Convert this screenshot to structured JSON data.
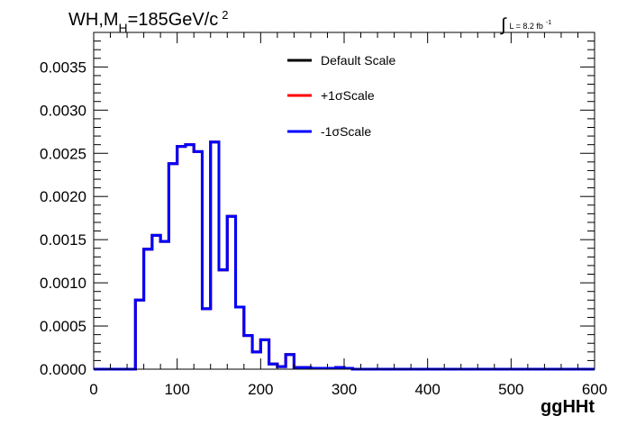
{
  "chart_data": {
    "type": "line",
    "title": {
      "main": "WH,M",
      "subscript": "H",
      "rest": "=185GeV/c",
      "superscript": "2"
    },
    "luminosity": {
      "integral_symbol": "∫",
      "text": "L = 8.2 fb",
      "superscript": "-1"
    },
    "xlabel": "ggHHt",
    "ylabel": "",
    "xlim": [
      0,
      600
    ],
    "ylim": [
      0,
      0.0039
    ],
    "x_ticks": [
      0,
      100,
      200,
      300,
      400,
      500,
      600
    ],
    "x_tick_labels": [
      "0",
      "100",
      "200",
      "300",
      "400",
      "500",
      "600"
    ],
    "y_ticks": [
      0,
      0.0005,
      0.001,
      0.0015,
      0.002,
      0.0025,
      0.003,
      0.0035
    ],
    "y_tick_labels": [
      "0.0000",
      "0.0005",
      "0.0010",
      "0.0015",
      "0.0020",
      "0.0025",
      "0.0030",
      "0.0035"
    ],
    "legend_placement": "top-center",
    "bin_edges": [
      0,
      10,
      20,
      30,
      40,
      50,
      60,
      70,
      80,
      90,
      100,
      110,
      120,
      130,
      140,
      150,
      160,
      170,
      180,
      190,
      200,
      210,
      220,
      230,
      240,
      250,
      260,
      270,
      280,
      290,
      300,
      310,
      320,
      330,
      340,
      350,
      360,
      370,
      380,
      390,
      400,
      410,
      420,
      430,
      440,
      450,
      460,
      470,
      480,
      490,
      500,
      510,
      520,
      530,
      540,
      550,
      560,
      570,
      580,
      590,
      600
    ],
    "series": [
      {
        "name": "Default Scale",
        "color": "#000000",
        "values": [
          0,
          0,
          0,
          0,
          0,
          0.0008,
          0.00139,
          0.00155,
          0.00148,
          0.00238,
          0.00258,
          0.0026,
          0.00252,
          0.0007,
          0.00263,
          0.00115,
          0.00177,
          0.00072,
          0.00039,
          0.0002,
          0.00034,
          6e-05,
          3e-05,
          0.00017,
          2e-05,
          2e-05,
          1e-05,
          1e-05,
          1e-05,
          2e-05,
          1e-05,
          0,
          0,
          0,
          0,
          0,
          0,
          0,
          0,
          0,
          0,
          0,
          0,
          0,
          0,
          0,
          0,
          0,
          0,
          0,
          0,
          0,
          0,
          0,
          0,
          0,
          0,
          0,
          0,
          0
        ]
      },
      {
        "name": "+1σScale",
        "color": "#ff0000",
        "values": [
          0,
          0,
          0,
          0,
          0,
          0.0008,
          0.00139,
          0.00155,
          0.00148,
          0.00238,
          0.00258,
          0.0026,
          0.00252,
          0.0007,
          0.00263,
          0.00115,
          0.00177,
          0.00072,
          0.00039,
          0.0002,
          0.00034,
          6e-05,
          3e-05,
          0.00017,
          2e-05,
          2e-05,
          1e-05,
          1e-05,
          1e-05,
          2e-05,
          1e-05,
          0,
          0,
          0,
          0,
          0,
          0,
          0,
          0,
          0,
          0,
          0,
          0,
          0,
          0,
          0,
          0,
          0,
          0,
          0,
          0,
          0,
          0,
          0,
          0,
          0,
          0,
          0,
          0,
          0
        ]
      },
      {
        "name": "-1σScale",
        "color": "#0000ff",
        "values": [
          0,
          0,
          0,
          0,
          0,
          0.0008,
          0.00139,
          0.00155,
          0.00148,
          0.00238,
          0.00258,
          0.0026,
          0.00252,
          0.0007,
          0.00263,
          0.00115,
          0.00177,
          0.00072,
          0.00039,
          0.0002,
          0.00034,
          6e-05,
          3e-05,
          0.00017,
          2e-05,
          2e-05,
          1e-05,
          1e-05,
          1e-05,
          2e-05,
          1e-05,
          0,
          0,
          0,
          0,
          0,
          0,
          0,
          0,
          0,
          0,
          0,
          0,
          0,
          0,
          0,
          0,
          0,
          0,
          0,
          0,
          0,
          0,
          0,
          0,
          0,
          0,
          0,
          0,
          0
        ]
      }
    ]
  }
}
